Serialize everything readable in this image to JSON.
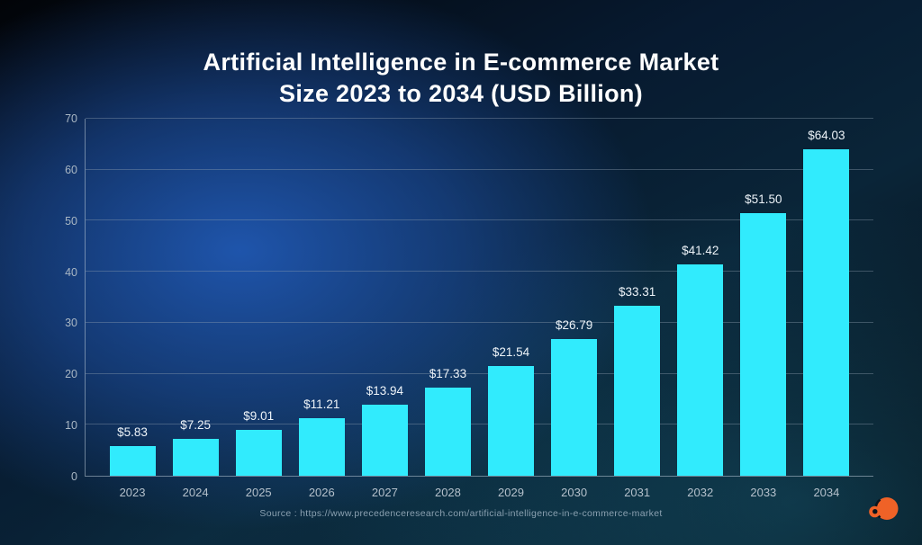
{
  "title": {
    "line1": "Artificial Intelligence in E-commerce Market",
    "line2": "Size 2023 to 2034 (USD Billion)"
  },
  "source_text": "Source : https://www.precedenceresearch.com/artificial-intelligence-in-e-commerce-market",
  "logo": {
    "name": "precedence-research-logo",
    "color": "#ef6227"
  },
  "colors": {
    "bar": "#31ebfd",
    "value_label": "#edf3f8",
    "tick_label": "#b4c0cb",
    "title": "#ffffff",
    "grid_line": "rgba(148,163,178,0.38)",
    "background_glow_blue": "#1d55a8",
    "background_glow_teal": "#1c7391",
    "background_dark": "#040a10"
  },
  "chart_data": {
    "type": "bar",
    "title": "Artificial Intelligence in E-commerce Market Size 2023 to 2034 (USD Billion)",
    "categories": [
      "2023",
      "2024",
      "2025",
      "2026",
      "2027",
      "2028",
      "2029",
      "2030",
      "2031",
      "2032",
      "2033",
      "2034"
    ],
    "values": [
      5.83,
      7.25,
      9.01,
      11.21,
      13.94,
      17.33,
      21.54,
      26.79,
      33.31,
      41.42,
      51.5,
      64.03
    ],
    "value_labels": [
      "$5.83",
      "$7.25",
      "$9.01",
      "$11.21",
      "$13.94",
      "$17.33",
      "$21.54",
      "$26.79",
      "$33.31",
      "$41.42",
      "$51.50",
      "$64.03"
    ],
    "xlabel": "",
    "ylabel": "",
    "ylim": [
      0,
      70
    ],
    "yticks": [
      0,
      10,
      20,
      30,
      40,
      50,
      60,
      70
    ],
    "grid": true,
    "legend": false,
    "bar_color": "#31ebfd"
  }
}
